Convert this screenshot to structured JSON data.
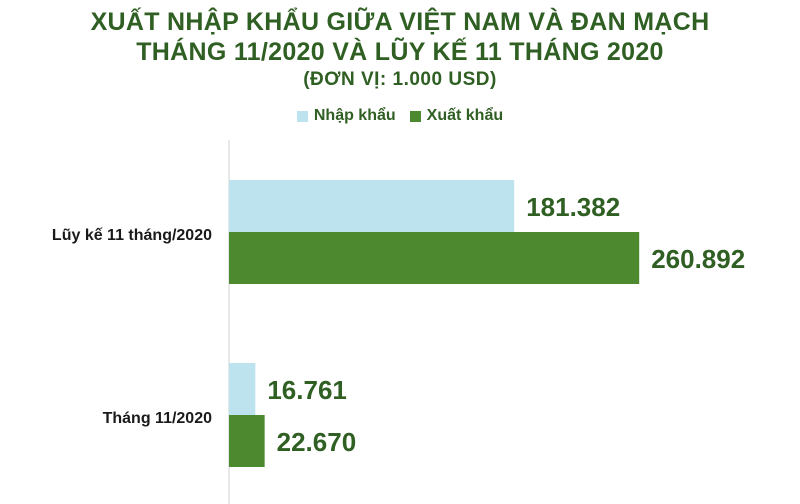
{
  "chart_data": {
    "type": "bar",
    "orientation": "horizontal",
    "title_lines": [
      "XUẤT NHẬP KHẨU GIỮA VIỆT NAM VÀ ĐAN MẠCH",
      "THÁNG 11/2020 VÀ LŨY KẾ 11 THÁNG 2020"
    ],
    "subtitle": "(ĐƠN VỊ: 1.000 USD)",
    "categories": [
      "Lũy kế 11 tháng/2020",
      "Tháng 11/2020"
    ],
    "series": [
      {
        "name": "Nhập khẩu",
        "values": [
          181382,
          16761
        ],
        "labels": [
          "181.382",
          "16.761"
        ],
        "color": "#bde3ee"
      },
      {
        "name": "Xuất khẩu",
        "values": [
          260892,
          22670
        ],
        "labels": [
          "260.892",
          "22.670"
        ],
        "color": "#4d8a2f"
      }
    ],
    "xlim": [
      0,
      325000
    ],
    "legend_position": "top-center",
    "grid": false,
    "value_label_color": "#2f5f22"
  }
}
